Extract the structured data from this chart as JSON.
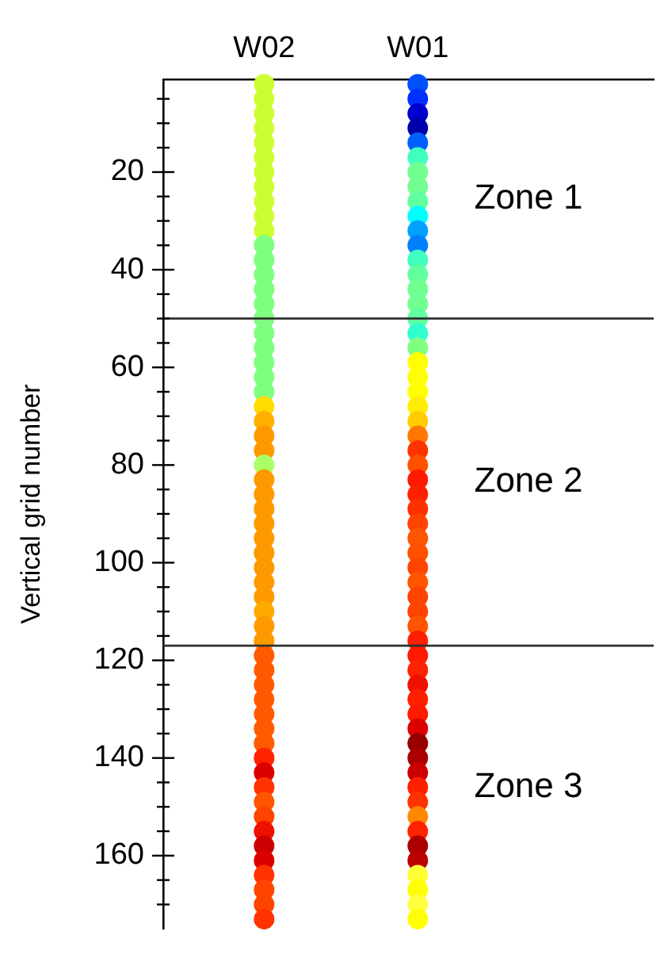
{
  "chart_data": {
    "type": "scatter",
    "categories": [
      "W02",
      "W01"
    ],
    "ylabel": "Vertical grid number",
    "ylim": [
      175,
      1
    ],
    "yticks": [
      {
        "value": 5,
        "label": null
      },
      {
        "value": 10,
        "label": null
      },
      {
        "value": 15,
        "label": null
      },
      20,
      {
        "value": 25,
        "label": null
      },
      {
        "value": 30,
        "label": null
      },
      {
        "value": 35,
        "label": null
      },
      40,
      {
        "value": 45,
        "label": null
      },
      {
        "value": 50,
        "label": null
      },
      {
        "value": 55,
        "label": null
      },
      60,
      {
        "value": 65,
        "label": null
      },
      {
        "value": 70,
        "label": null
      },
      {
        "value": 75,
        "label": null
      },
      80,
      {
        "value": 85,
        "label": null
      },
      {
        "value": 90,
        "label": null
      },
      {
        "value": 95,
        "label": null
      },
      100,
      {
        "value": 105,
        "label": null
      },
      {
        "value": 110,
        "label": null
      },
      {
        "value": 115,
        "label": null
      },
      120,
      {
        "value": 125,
        "label": null
      },
      {
        "value": 130,
        "label": null
      },
      {
        "value": 135,
        "label": null
      },
      140,
      {
        "value": 145,
        "label": null
      },
      {
        "value": 150,
        "label": null
      },
      {
        "value": 155,
        "label": null
      },
      160,
      {
        "value": 165,
        "label": null
      },
      {
        "value": 170,
        "label": null
      }
    ],
    "grid": false,
    "marker": "circle",
    "legend": false,
    "ref_lines": [
      {
        "axis": "y",
        "value": 50,
        "color": "#303030"
      },
      {
        "axis": "y",
        "value": 117,
        "color": "#303030"
      }
    ],
    "annotations": [
      "Zone 1",
      "Zone 2",
      "Zone 3"
    ],
    "series": [
      {
        "x": [
          "W02",
          "W02",
          "W02",
          "W02",
          "W02",
          "W02",
          "W02",
          "W02",
          "W02",
          "W02",
          "W02",
          "W02",
          "W02",
          "W02",
          "W02",
          "W02",
          "W02",
          "W02",
          "W02",
          "W02",
          "W02",
          "W02",
          "W02",
          "W02",
          "W02",
          "W02",
          "W02",
          "W02",
          "W02",
          "W02",
          "W02",
          "W02",
          "W02",
          "W02",
          "W02",
          "W02",
          "W02",
          "W02",
          "W02",
          "W02",
          "W02",
          "W02",
          "W02",
          "W02",
          "W02",
          "W02",
          "W02",
          "W02",
          "W02",
          "W02",
          "W02",
          "W02",
          "W02",
          "W02",
          "W02",
          "W02",
          "W02",
          "W02"
        ],
        "values": [
          2,
          5,
          8,
          11,
          14,
          17,
          20,
          23,
          26,
          29,
          32,
          35,
          38,
          41,
          44,
          47,
          50,
          53,
          56,
          59,
          62,
          65,
          68,
          71,
          74,
          77,
          80,
          83,
          86,
          89,
          92,
          95,
          98,
          101,
          104,
          107,
          110,
          113,
          116,
          119,
          122,
          125,
          128,
          131,
          134,
          137,
          140,
          143,
          146,
          149,
          152,
          155,
          158,
          161,
          164,
          167,
          170,
          173
        ],
        "colors": [
          "#ccff33",
          "#ccff33",
          "#ccff33",
          "#ccff33",
          "#ccff33",
          "#ccff33",
          "#ccff33",
          "#ccff33",
          "#ccff33",
          "#ccff33",
          "#ccff33",
          "#7fff80",
          "#7fff80",
          "#7fff80",
          "#7fff80",
          "#7fff80",
          "#7fff80",
          "#7fff80",
          "#7fff80",
          "#7fff80",
          "#7fff80",
          "#7fff80",
          "#ffdd00",
          "#ffb000",
          "#ff9900",
          "#ff9900",
          "#aaff66",
          "#ff9900",
          "#ff9900",
          "#ff9900",
          "#ff9900",
          "#ff9900",
          "#ff9900",
          "#ff9900",
          "#ff9900",
          "#ff9900",
          "#ffaa00",
          "#ff9900",
          "#ff9900",
          "#ff5a00",
          "#ff5a00",
          "#ff5a00",
          "#ff5a00",
          "#ff5a00",
          "#ff5a00",
          "#ff5a00",
          "#ff2200",
          "#dd0000",
          "#ff3300",
          "#ff5500",
          "#ff4400",
          "#ee1100",
          "#cc0000",
          "#dd0000",
          "#ff3300",
          "#ff4400",
          "#ff4400",
          "#ff3300"
        ]
      },
      {
        "x": [
          "W01",
          "W01",
          "W01",
          "W01",
          "W01",
          "W01",
          "W01",
          "W01",
          "W01",
          "W01",
          "W01",
          "W01",
          "W01",
          "W01",
          "W01",
          "W01",
          "W01",
          "W01",
          "W01",
          "W01",
          "W01",
          "W01",
          "W01",
          "W01",
          "W01",
          "W01",
          "W01",
          "W01",
          "W01",
          "W01",
          "W01",
          "W01",
          "W01",
          "W01",
          "W01",
          "W01",
          "W01",
          "W01",
          "W01",
          "W01",
          "W01",
          "W01",
          "W01",
          "W01",
          "W01",
          "W01",
          "W01",
          "W01",
          "W01",
          "W01",
          "W01",
          "W01",
          "W01",
          "W01",
          "W01",
          "W01",
          "W01",
          "W01"
        ],
        "values": [
          2,
          5,
          8,
          11,
          14,
          17,
          20,
          23,
          26,
          29,
          32,
          35,
          38,
          41,
          44,
          47,
          50,
          53,
          56,
          59,
          62,
          65,
          68,
          71,
          74,
          77,
          80,
          83,
          86,
          89,
          92,
          95,
          98,
          101,
          104,
          107,
          110,
          113,
          116,
          119,
          122,
          125,
          128,
          131,
          134,
          137,
          140,
          143,
          146,
          149,
          152,
          155,
          158,
          161,
          164,
          167,
          170,
          173
        ],
        "colors": [
          "#0050ff",
          "#0030ff",
          "#0000cc",
          "#0000aa",
          "#0060ff",
          "#40ffc0",
          "#70ff90",
          "#70ff90",
          "#60ffa0",
          "#00ffff",
          "#00a0ff",
          "#0080ff",
          "#40ffc0",
          "#60ffa0",
          "#70ff90",
          "#70ff90",
          "#60ffa0",
          "#30ffd0",
          "#80ff80",
          "#ffff00",
          "#ffff00",
          "#ffff00",
          "#ffee00",
          "#ffcc00",
          "#ff7700",
          "#ff3300",
          "#ff5000",
          "#ff1a00",
          "#ff2000",
          "#ff3000",
          "#ff4400",
          "#ff5500",
          "#ff5000",
          "#ff4400",
          "#ff5500",
          "#ff4400",
          "#ff4400",
          "#ff5500",
          "#ff2000",
          "#ff1a00",
          "#ff2200",
          "#ee1100",
          "#ff2000",
          "#ff1a00",
          "#dd0000",
          "#990000",
          "#aa0000",
          "#cc0000",
          "#ff2000",
          "#ff3300",
          "#ff8800",
          "#ff2200",
          "#aa0000",
          "#bb0000",
          "#ffff33",
          "#ffff00",
          "#ffff40",
          "#ffff00"
        ]
      }
    ]
  }
}
